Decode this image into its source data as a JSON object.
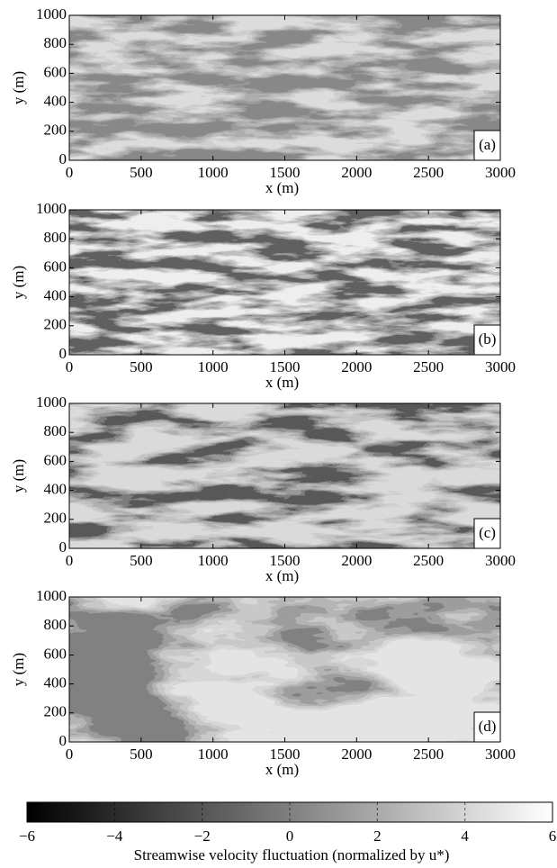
{
  "chart_data": [
    {
      "type": "contour",
      "panel_label": "(a)",
      "xlabel": "x (m)",
      "ylabel": "y (m)",
      "xlim": [
        0,
        3000
      ],
      "ylim": [
        0,
        1000
      ],
      "xticks": [
        0,
        500,
        1000,
        1500,
        2000,
        2500,
        3000
      ],
      "yticks": [
        0,
        200,
        400,
        600,
        800,
        1000
      ]
    },
    {
      "type": "contour",
      "panel_label": "(b)",
      "xlabel": "x (m)",
      "ylabel": "y (m)",
      "xlim": [
        0,
        3000
      ],
      "ylim": [
        0,
        1000
      ],
      "xticks": [
        0,
        500,
        1000,
        1500,
        2000,
        2500,
        3000
      ],
      "yticks": [
        0,
        200,
        400,
        600,
        800,
        1000
      ]
    },
    {
      "type": "contour",
      "panel_label": "(c)",
      "xlabel": "x (m)",
      "ylabel": "y (m)",
      "xlim": [
        0,
        3000
      ],
      "ylim": [
        0,
        1000
      ],
      "xticks": [
        0,
        500,
        1000,
        1500,
        2000,
        2500,
        3000
      ],
      "yticks": [
        0,
        200,
        400,
        600,
        800,
        1000
      ]
    },
    {
      "type": "contour",
      "panel_label": "(d)",
      "xlabel": "x (m)",
      "ylabel": "y (m)",
      "xlim": [
        0,
        3000
      ],
      "ylim": [
        0,
        1000
      ],
      "xticks": [
        0,
        500,
        1000,
        1500,
        2000,
        2500,
        3000
      ],
      "yticks": [
        0,
        200,
        400,
        600,
        800,
        1000
      ]
    },
    {
      "type": "colorbar",
      "label": "Streamwise velocity fluctuation (normalized by u*)",
      "lim": [
        -6,
        6
      ],
      "ticks": [
        {
          "value": -6,
          "label": "−6"
        },
        {
          "value": -4,
          "label": "−4"
        },
        {
          "value": -2,
          "label": "−2"
        },
        0,
        2,
        4,
        6
      ]
    }
  ]
}
